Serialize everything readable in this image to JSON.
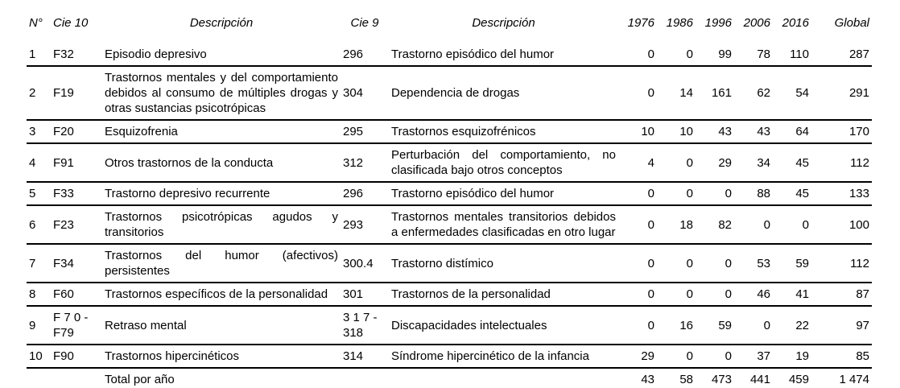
{
  "colors": {
    "text": "#000000",
    "background": "#ffffff",
    "rule": "#000000"
  },
  "table": {
    "headers": {
      "num": "N°",
      "cie10": "Cie 10",
      "desc_cie10": "Descripción",
      "cie9": "Cie 9",
      "desc_cie9": "Descripción",
      "years": [
        "1976",
        "1986",
        "1996",
        "2006",
        "2016"
      ],
      "global": "Global"
    },
    "rows": [
      {
        "num": "1",
        "cie10": "F32",
        "desc_cie10": "Episodio depresivo",
        "cie9": "296",
        "desc_cie9": "Trastorno episódico del humor",
        "values": [
          "0",
          "0",
          "99",
          "78",
          "110"
        ],
        "global": "287"
      },
      {
        "num": "2",
        "cie10": "F19",
        "desc_cie10": "Trastornos mentales y del comportamiento debidos al consumo de múltiples drogas y otras sustancias psicotrópicas",
        "cie9": "304",
        "desc_cie9": "Dependencia de drogas",
        "values": [
          "0",
          "14",
          "161",
          "62",
          "54"
        ],
        "global": "291"
      },
      {
        "num": "3",
        "cie10": "F20",
        "desc_cie10": "Esquizofrenia",
        "cie9": "295",
        "desc_cie9": "Trastornos esquizofrénicos",
        "values": [
          "10",
          "10",
          "43",
          "43",
          "64"
        ],
        "global": "170"
      },
      {
        "num": "4",
        "cie10": "F91",
        "desc_cie10": "Otros trastornos de la conducta",
        "cie9": "312",
        "desc_cie9": "Perturbación del comportamiento, no clasificada bajo otros conceptos",
        "values": [
          "4",
          "0",
          "29",
          "34",
          "45"
        ],
        "global": "112"
      },
      {
        "num": "5",
        "cie10": "F33",
        "desc_cie10": "Trastorno depresivo recurrente",
        "cie9": "296",
        "desc_cie9": "Trastorno episódico del humor",
        "values": [
          "0",
          "0",
          "0",
          "88",
          "45"
        ],
        "global": "133"
      },
      {
        "num": "6",
        "cie10": "F23",
        "desc_cie10": "Trastornos psicotrópicas agudos y transitorios",
        "cie9": "293",
        "desc_cie9": "Trastornos mentales transitorios debidos a enfermedades clasificadas en otro lugar",
        "values": [
          "0",
          "18",
          "82",
          "0",
          "0"
        ],
        "global": "100"
      },
      {
        "num": "7",
        "cie10": "F34",
        "desc_cie10": "Trastornos del humor (afectivos) persistentes",
        "cie9": "300.4",
        "desc_cie9": "Trastorno distímico",
        "values": [
          "0",
          "0",
          "0",
          "53",
          "59"
        ],
        "global": "112"
      },
      {
        "num": "8",
        "cie10": "F60",
        "desc_cie10": "Trastornos específicos de la personalidad",
        "cie9": "301",
        "desc_cie9": "Trastornos de la personalidad",
        "values": [
          "0",
          "0",
          "0",
          "46",
          "41"
        ],
        "global": "87"
      },
      {
        "num": "9",
        "cie10": "F 7 0 - F79",
        "desc_cie10": "Retraso mental",
        "cie9": "3 1 7 - 318",
        "desc_cie9": "Discapacidades intelectuales",
        "values": [
          "0",
          "16",
          "59",
          "0",
          "22"
        ],
        "global": "97"
      },
      {
        "num": "10",
        "cie10": "F90",
        "desc_cie10": "Trastornos hipercinéticos",
        "cie9": "314",
        "desc_cie9": "Síndrome hipercinético de la infancia",
        "values": [
          "29",
          "0",
          "0",
          "37",
          "19"
        ],
        "global": "85"
      }
    ],
    "total_row": {
      "label": "Total por año",
      "values": [
        "43",
        "58",
        "473",
        "441",
        "459"
      ],
      "global": "1 474"
    }
  }
}
